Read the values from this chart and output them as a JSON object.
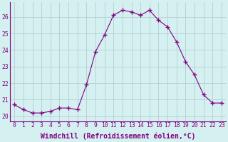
{
  "x": [
    0,
    1,
    2,
    3,
    4,
    5,
    6,
    7,
    8,
    9,
    10,
    11,
    12,
    13,
    14,
    15,
    16,
    17,
    18,
    19,
    20,
    21,
    22,
    23
  ],
  "y": [
    20.7,
    20.4,
    20.2,
    20.2,
    20.3,
    20.5,
    20.5,
    20.4,
    21.9,
    23.9,
    24.9,
    26.1,
    26.4,
    26.3,
    26.1,
    26.4,
    25.8,
    25.4,
    24.5,
    23.3,
    22.5,
    21.3,
    20.8,
    20.8
  ],
  "line_color": "#800080",
  "marker": "+",
  "marker_size": 4,
  "bg_color": "#d4f0f0",
  "grid_color": "#b0c8c8",
  "xlabel": "Windchill (Refroidissement éolien,°C)",
  "xlabel_fontsize": 7,
  "ylabel_ticks": [
    20,
    21,
    22,
    23,
    24,
    25,
    26
  ],
  "xlim": [
    -0.5,
    23.5
  ],
  "ylim": [
    19.7,
    26.9
  ],
  "xtick_labels": [
    "0",
    "1",
    "2",
    "3",
    "4",
    "5",
    "6",
    "7",
    "8",
    "9",
    "10",
    "11",
    "12",
    "13",
    "14",
    "15",
    "16",
    "17",
    "18",
    "19",
    "20",
    "21",
    "22",
    "23"
  ],
  "tick_fontsize": 5.8,
  "label_color": "#800080",
  "spine_color": "#800080",
  "figsize": [
    3.2,
    2.0
  ],
  "dpi": 100
}
